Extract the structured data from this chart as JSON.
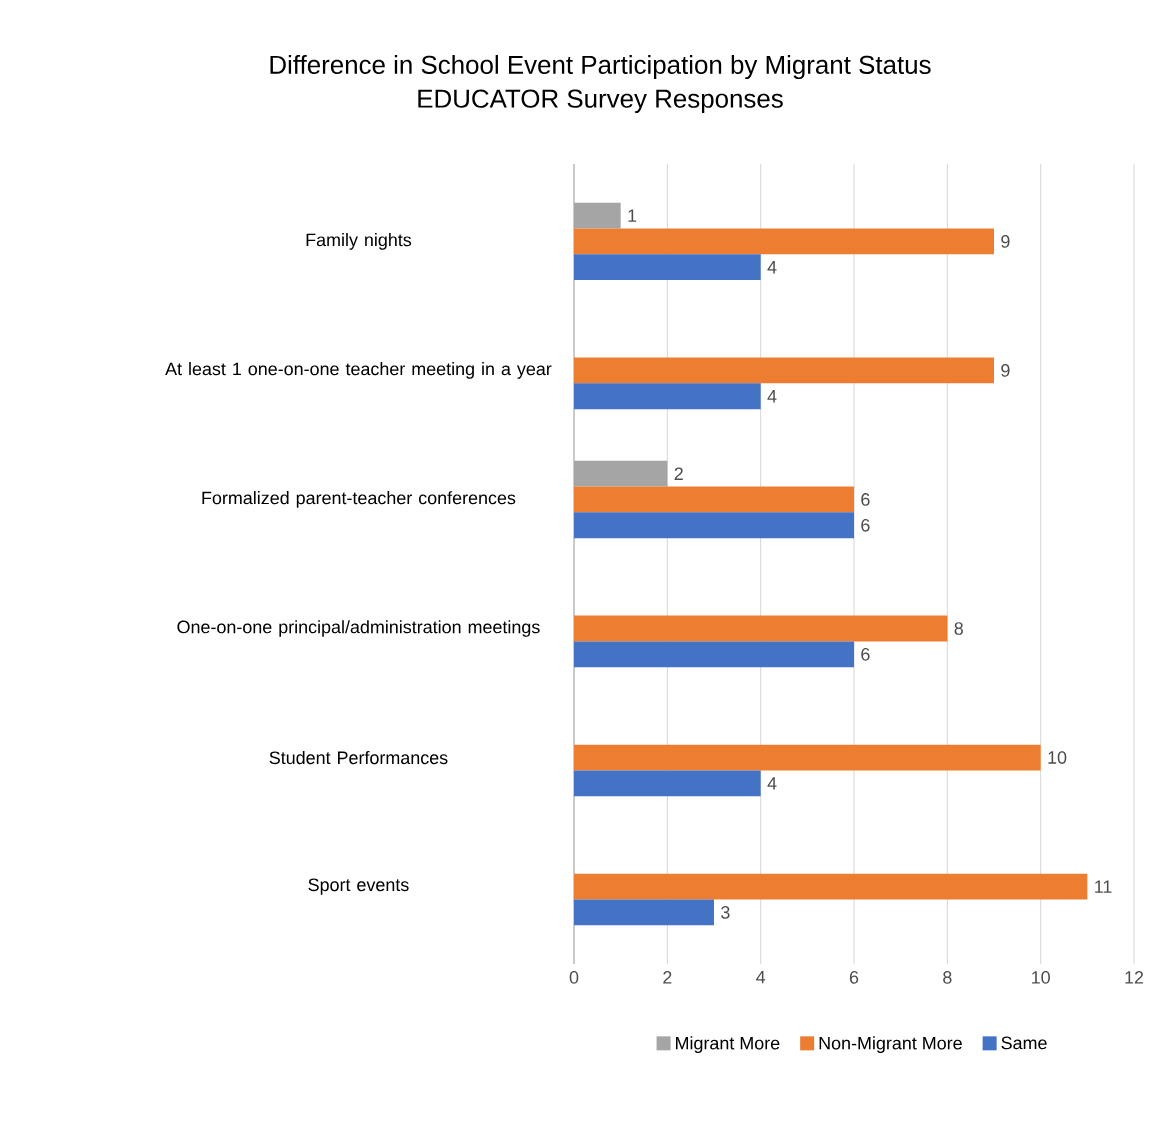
{
  "chart_data": {
    "type": "bar",
    "orientation": "horizontal",
    "title": "Difference in School Event Participation by Migrant Status",
    "subtitle": "EDUCATOR Survey Responses",
    "categories": [
      "Family nights",
      "At least 1 one-on-one teacher meeting in a year",
      "Formalized parent-teacher conferences",
      "One-on-one principal/administration meetings",
      "Student Performances",
      "Sport events"
    ],
    "series": [
      {
        "name": "Migrant More",
        "color": "#a5a5a5",
        "values": [
          1,
          null,
          2,
          null,
          null,
          null
        ]
      },
      {
        "name": "Non-Migrant More",
        "color": "#ed7d31",
        "values": [
          9,
          9,
          6,
          8,
          10,
          11
        ]
      },
      {
        "name": "Same",
        "color": "#4472c4",
        "values": [
          4,
          4,
          6,
          6,
          4,
          3
        ]
      }
    ],
    "xlim": [
      0,
      12
    ],
    "xticks": [
      0,
      2,
      4,
      6,
      8,
      10,
      12
    ],
    "grid": "x",
    "legend": "bottom",
    "data_labels": true
  }
}
